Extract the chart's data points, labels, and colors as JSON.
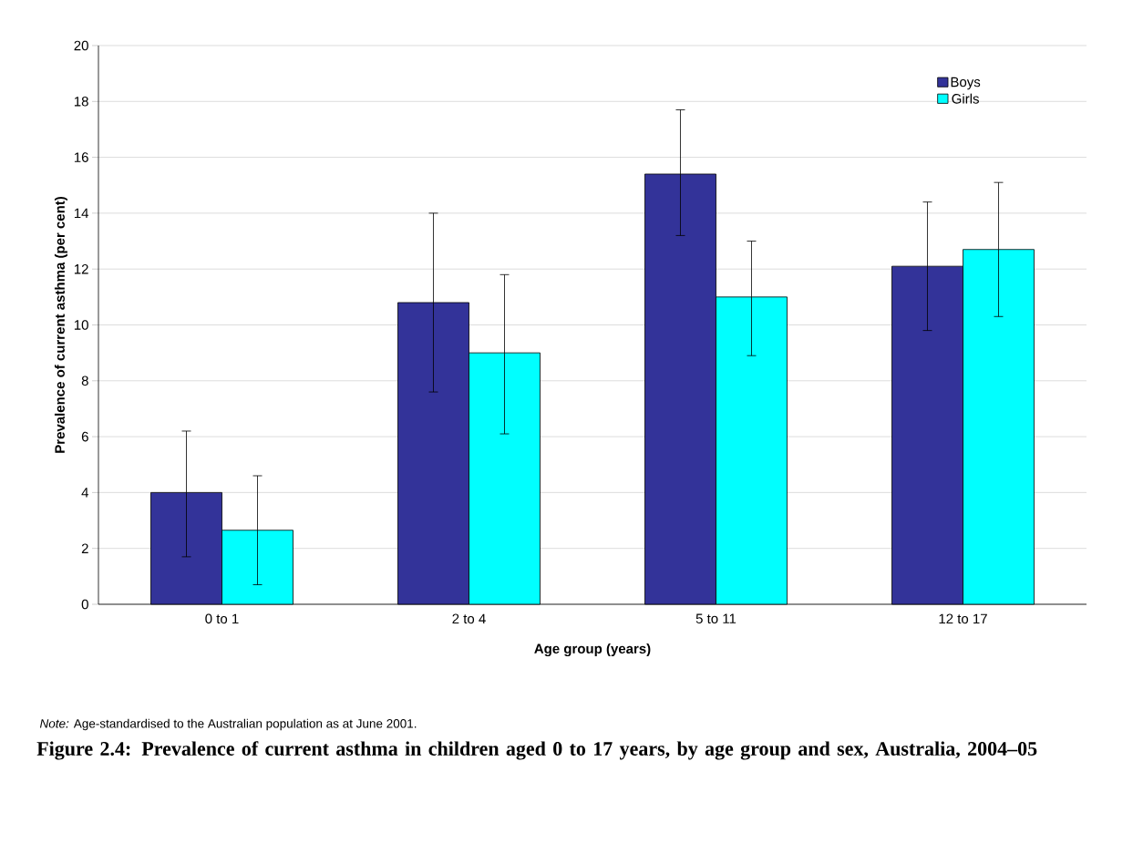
{
  "chart_data": {
    "type": "bar",
    "title": "Figure 2.4: Prevalence of current asthma in children aged 0 to 17 years, by age group and sex, Australia, 2004–05",
    "xlabel": "Age group (years)",
    "ylabel": "Prevalence of current asthma (per cent)",
    "annotations": [
      "*Note:* Age-standardised to the Australian population as at June 2001."
    ],
    "categories": [
      "0 to 1",
      "2 to 4",
      "5 to 11",
      "12 to 17"
    ],
    "series": [
      {
        "name": "Boys",
        "color": "#333399",
        "values": [
          4.0,
          10.8,
          15.4,
          12.1
        ],
        "errors": [
          [
            1.7,
            6.2
          ],
          [
            7.6,
            14.0
          ],
          [
            13.2,
            17.7
          ],
          [
            9.8,
            14.4
          ]
        ]
      },
      {
        "name": "Girls",
        "color": "#00ffff",
        "values": [
          2.65,
          9.0,
          11.0,
          12.7
        ],
        "errors": [
          [
            0.7,
            4.6
          ],
          [
            6.1,
            11.8
          ],
          [
            8.9,
            13.0
          ],
          [
            10.3,
            15.1
          ]
        ]
      }
    ],
    "ylim": [
      0,
      20
    ],
    "yticks": [
      0,
      2,
      4,
      6,
      8,
      10,
      12,
      14,
      16,
      18,
      20
    ],
    "grid": "y",
    "legend": "top right"
  }
}
